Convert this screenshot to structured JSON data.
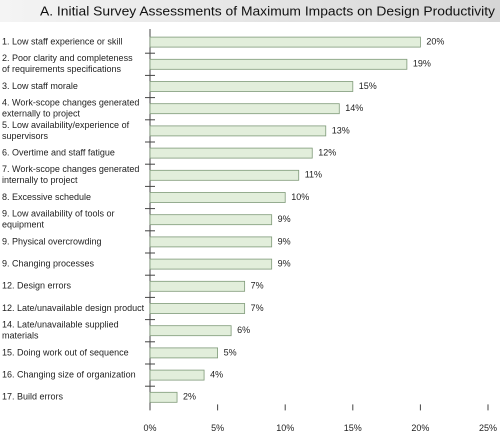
{
  "chart_data": {
    "type": "bar",
    "title": "A. Initial Survey Assessments of Maximum Impacts on Design Productivity",
    "categories": [
      [
        "1. Low staff experience or skill"
      ],
      [
        "2. Poor clarity and completeness",
        "of requirements specifications"
      ],
      [
        "3. Low staff morale"
      ],
      [
        "4. Work-scope changes generated",
        "externally to project"
      ],
      [
        "5. Low availability/experience of",
        "supervisors"
      ],
      [
        "6. Overtime and staff fatigue"
      ],
      [
        "7. Work-scope changes generated",
        "internally to project"
      ],
      [
        "8. Excessive schedule"
      ],
      [
        "9. Low availability of tools or",
        "equipment"
      ],
      [
        "9. Physical overcrowding"
      ],
      [
        "9. Changing processes"
      ],
      [
        "12. Design errors"
      ],
      [
        "12. Late/unavailable design product"
      ],
      [
        "14. Late/unavailable supplied",
        "materials"
      ],
      [
        "15. Doing work out of sequence"
      ],
      [
        "16. Changing size of organization"
      ],
      [
        "17. Build errors"
      ]
    ],
    "values": [
      20,
      19,
      15,
      14,
      13,
      12,
      11,
      10,
      9,
      9,
      9,
      7,
      7,
      6,
      5,
      4,
      2
    ],
    "value_labels": [
      "20%",
      "19%",
      "15%",
      "14%",
      "13%",
      "12%",
      "11%",
      "10%",
      "9%",
      "9%",
      "9%",
      "7%",
      "7%",
      "6%",
      "5%",
      "4%",
      "2%"
    ],
    "color": "#e2eedb",
    "xlim": [
      0,
      25
    ],
    "xticks": [
      {
        "value": 0,
        "label": "0%"
      },
      {
        "value": 5,
        "label": "5%"
      },
      {
        "value": 10,
        "label": "10%"
      },
      {
        "value": 15,
        "label": "15%"
      },
      {
        "value": 20,
        "label": "20%"
      },
      {
        "value": 25,
        "label": "25%"
      }
    ]
  }
}
